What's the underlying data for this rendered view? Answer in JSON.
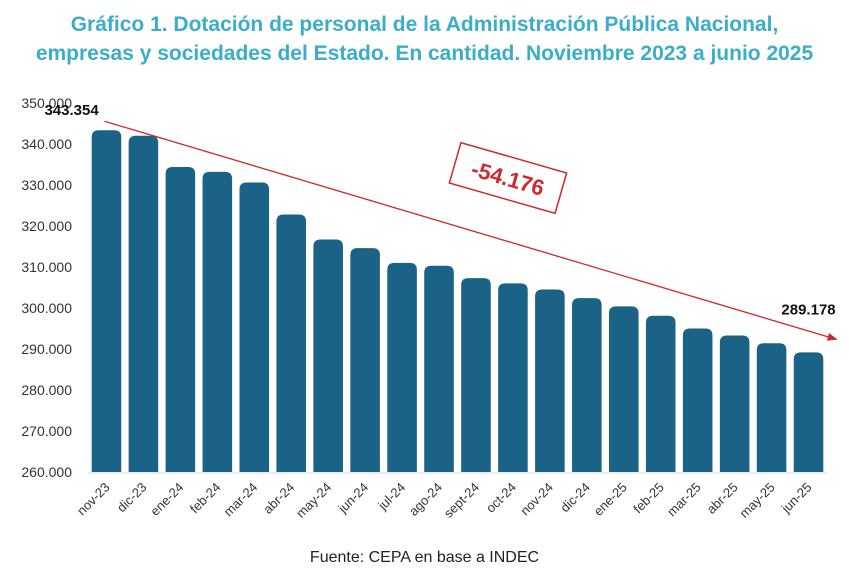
{
  "header": {
    "title_line1": "Gráfico 1. Dotación de personal de la Administración Pública Nacional,",
    "title_line2": "empresas y sociedades del Estado. En cantidad. Noviembre 2023 a junio 2025"
  },
  "footer": {
    "source": "Fuente: CEPA en base a INDEC"
  },
  "chart_data": {
    "type": "bar",
    "categories": [
      "nov-23",
      "dic-23",
      "ene-24",
      "feb-24",
      "mar-24",
      "abr-24",
      "may-24",
      "jun-24",
      "jul-24",
      "ago-24",
      "sept-24",
      "oct-24",
      "nov-24",
      "dic-24",
      "ene-25",
      "feb-25",
      "mar-25",
      "abr-25",
      "may-25",
      "jun-25"
    ],
    "values": [
      343354,
      342000,
      334400,
      333200,
      330600,
      322800,
      316700,
      314600,
      311000,
      310300,
      307300,
      306000,
      304500,
      302400,
      300400,
      298100,
      295000,
      293300,
      291400,
      289178
    ],
    "ylim": [
      260000,
      350000
    ],
    "yticks": [
      "260.000",
      "270.000",
      "280.000",
      "290.000",
      "300.000",
      "310.000",
      "320.000",
      "330.000",
      "340.000",
      "350.000"
    ],
    "ytick_values": [
      260000,
      270000,
      280000,
      290000,
      300000,
      310000,
      320000,
      330000,
      340000,
      350000
    ],
    "annotations": {
      "first_label": "343.354",
      "last_label": "289.178",
      "change_label": "-54.176"
    },
    "colors": {
      "bar": "#1a6286",
      "arrow": "#d0282c",
      "change_text": "#d0282c"
    },
    "grid": false
  }
}
